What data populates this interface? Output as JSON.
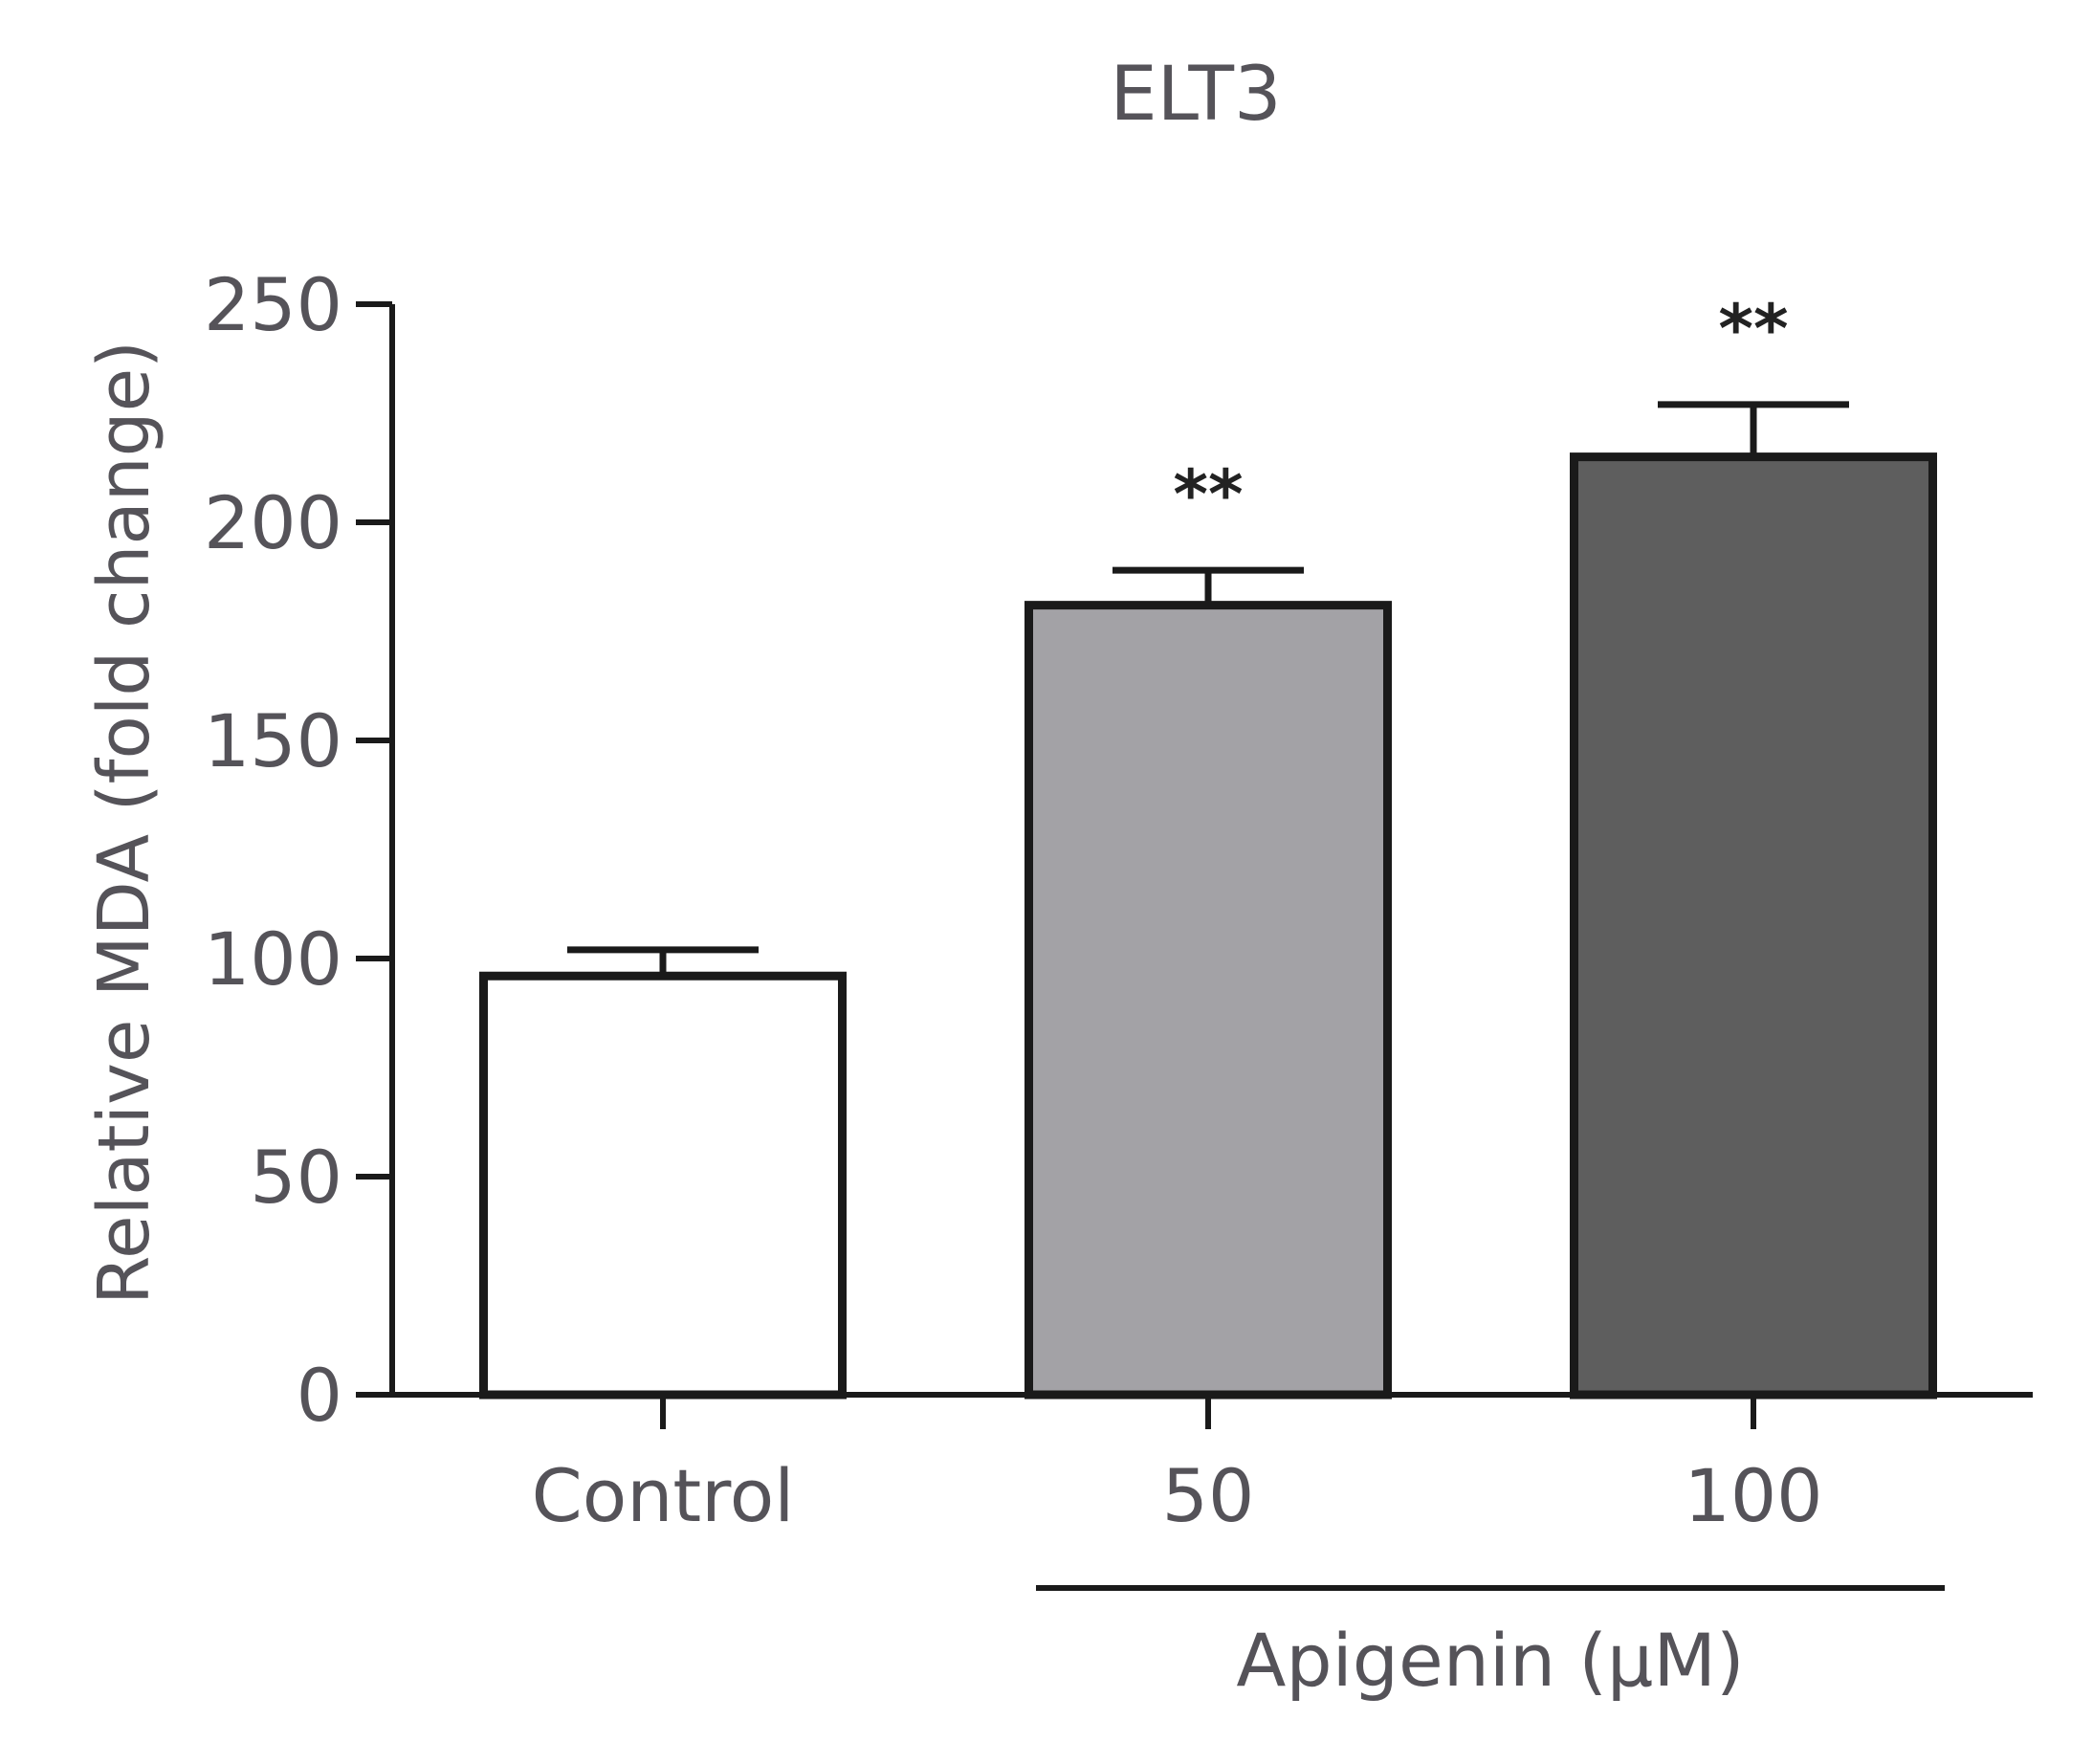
{
  "chart_data": {
    "type": "bar",
    "title": "ELT3",
    "ylabel": "Relative MDA (fold change)",
    "xlabel": "",
    "ylim": [
      0,
      250
    ],
    "yticks": [
      0,
      50,
      100,
      150,
      200,
      250
    ],
    "categories": [
      "Control",
      "50",
      "100"
    ],
    "values": [
      96,
      181,
      215
    ],
    "errors": [
      6,
      8,
      12
    ],
    "bar_colors": [
      "#ffffff",
      "#a3a2a6",
      "#5e5e5e"
    ],
    "significance": [
      "",
      "**",
      "**"
    ],
    "group_label": {
      "text": "Apigenin (µM)",
      "categories": [
        "50",
        "100"
      ]
    },
    "grid": false,
    "legend": "none"
  }
}
